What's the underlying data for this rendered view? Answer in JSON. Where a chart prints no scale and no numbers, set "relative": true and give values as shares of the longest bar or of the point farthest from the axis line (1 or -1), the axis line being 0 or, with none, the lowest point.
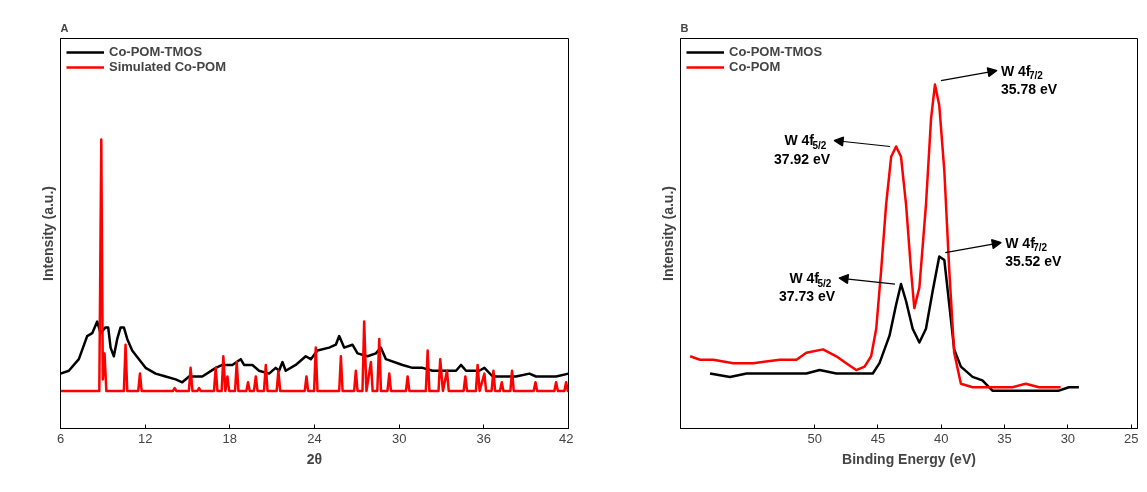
{
  "chart_data": [
    {
      "type": "line",
      "title": "A",
      "xlabel": "2θ",
      "ylabel": "Intensity (a.u.)",
      "xlim": [
        6,
        42
      ],
      "xticks": [
        6,
        12,
        18,
        24,
        30,
        36,
        42
      ],
      "relative": true,
      "legend": "top left",
      "series": [
        {
          "name": "Co-POM-TMOS",
          "color": "#000000",
          "x": [
            6.0,
            6.59,
            7.3,
            7.89,
            8.25,
            8.6,
            8.84,
            9.19,
            9.38,
            9.55,
            9.78,
            10.02,
            10.26,
            10.49,
            10.73,
            11.08,
            11.56,
            12.03,
            12.74,
            13.45,
            14.16,
            14.63,
            15.11,
            16.05,
            17.0,
            17.47,
            18.18,
            18.77,
            19.01,
            19.6,
            20.07,
            20.78,
            21.25,
            21.49,
            21.73,
            21.96,
            22.67,
            23.38,
            23.74,
            24.21,
            25.04,
            25.51,
            25.75,
            26.1,
            26.69,
            27.05,
            27.76,
            28.35,
            28.7,
            29.06,
            30.24,
            30.95,
            31.66,
            32.37,
            33.08,
            34.03,
            34.38,
            34.74,
            35.68,
            36.04,
            36.63,
            38.28,
            39.23,
            39.7,
            41.12,
            42.0
          ],
          "values": [
            0.19,
            0.2,
            0.24,
            0.32,
            0.33,
            0.37,
            0.33,
            0.35,
            0.35,
            0.28,
            0.25,
            0.31,
            0.35,
            0.35,
            0.31,
            0.27,
            0.24,
            0.21,
            0.19,
            0.18,
            0.17,
            0.16,
            0.18,
            0.18,
            0.21,
            0.22,
            0.22,
            0.24,
            0.22,
            0.22,
            0.2,
            0.19,
            0.21,
            0.2,
            0.23,
            0.2,
            0.22,
            0.25,
            0.24,
            0.27,
            0.28,
            0.29,
            0.32,
            0.28,
            0.29,
            0.26,
            0.25,
            0.26,
            0.28,
            0.24,
            0.22,
            0.21,
            0.21,
            0.2,
            0.2,
            0.2,
            0.22,
            0.2,
            0.2,
            0.21,
            0.18,
            0.18,
            0.19,
            0.18,
            0.18,
            0.19
          ]
        },
        {
          "name": "Simulated Co-POM",
          "color": "#ff0000",
          "x": [
            6.0,
            8.75,
            8.89,
            9.0,
            9.12,
            9.25,
            10.49,
            10.61,
            10.73,
            11.51,
            11.63,
            11.75,
            13.97,
            14.09,
            14.21,
            15.1,
            15.22,
            15.35,
            15.7,
            15.82,
            15.93,
            16.88,
            17.0,
            17.12,
            17.42,
            17.54,
            17.68,
            17.83,
            17.95,
            18.37,
            18.49,
            18.61,
            19.17,
            19.29,
            19.41,
            19.71,
            19.84,
            19.96,
            20.42,
            20.55,
            20.67,
            21.32,
            21.44,
            21.57,
            23.31,
            23.43,
            23.55,
            23.97,
            24.09,
            24.21,
            25.75,
            25.87,
            25.99,
            26.81,
            26.93,
            27.05,
            27.4,
            27.52,
            27.68,
            28.0,
            28.12,
            28.45,
            28.59,
            28.71,
            29.17,
            29.3,
            29.42,
            30.48,
            30.6,
            30.72,
            31.89,
            32.02,
            32.14,
            32.79,
            32.91,
            33.1,
            33.39,
            33.51,
            34.57,
            34.69,
            34.81,
            35.44,
            35.56,
            35.7,
            36.04,
            36.16,
            36.55,
            36.68,
            36.8,
            37.14,
            37.27,
            37.39,
            37.88,
            38.0,
            38.12,
            39.53,
            39.66,
            39.78,
            41.0,
            41.12,
            41.25,
            41.71,
            41.83,
            41.95,
            42.0
          ],
          "values": [
            0.13,
            0.13,
            1.0,
            0.17,
            0.26,
            0.13,
            0.13,
            0.29,
            0.13,
            0.13,
            0.19,
            0.13,
            0.13,
            0.14,
            0.13,
            0.13,
            0.21,
            0.13,
            0.13,
            0.14,
            0.13,
            0.13,
            0.21,
            0.13,
            0.13,
            0.25,
            0.13,
            0.18,
            0.13,
            0.13,
            0.23,
            0.13,
            0.13,
            0.16,
            0.13,
            0.13,
            0.18,
            0.13,
            0.13,
            0.22,
            0.13,
            0.13,
            0.2,
            0.13,
            0.13,
            0.18,
            0.13,
            0.13,
            0.28,
            0.13,
            0.13,
            0.25,
            0.13,
            0.13,
            0.2,
            0.13,
            0.13,
            0.37,
            0.13,
            0.23,
            0.13,
            0.13,
            0.31,
            0.13,
            0.13,
            0.19,
            0.13,
            0.13,
            0.18,
            0.13,
            0.13,
            0.27,
            0.13,
            0.13,
            0.24,
            0.13,
            0.2,
            0.13,
            0.13,
            0.18,
            0.13,
            0.13,
            0.22,
            0.13,
            0.19,
            0.13,
            0.13,
            0.2,
            0.13,
            0.13,
            0.16,
            0.13,
            0.13,
            0.2,
            0.13,
            0.13,
            0.16,
            0.13,
            0.13,
            0.16,
            0.13,
            0.13,
            0.16,
            0.13,
            0.13
          ]
        }
      ]
    },
    {
      "type": "line",
      "title": "B",
      "xlabel": "Binding Energy (eV)",
      "ylabel": "Intensity (a.u.)",
      "xlim": [
        60.6,
        24.5
      ],
      "xticks": [
        50,
        45,
        40,
        35,
        30,
        25
      ],
      "relative": true,
      "legend": "top left",
      "annotations": [
        {
          "text": "W 4f$_{7/2}$\n35.78 eV",
          "x": 40.5,
          "y": 1.0
        },
        {
          "text": "W 4f$_{5/2}$\n37.92 eV",
          "x": 43.57,
          "y": 0.82
        },
        {
          "text": "W 4f$_{7/2}$\n35.52 eV",
          "x": 40.16,
          "y": 0.5
        },
        {
          "text": "W 4f$_{5/2}$\n37.73 eV",
          "x": 43.18,
          "y": 0.42
        }
      ],
      "series": [
        {
          "name": "Co-POM-TMOS",
          "color": "#000000",
          "x": [
            58.27,
            56.69,
            55.38,
            53.81,
            52.23,
            50.66,
            49.61,
            48.29,
            46.98,
            45.93,
            45.41,
            44.88,
            44.09,
            43.57,
            43.18,
            42.78,
            42.26,
            41.73,
            41.21,
            40.68,
            40.16,
            39.76,
            39.37,
            38.98,
            38.45,
            37.53,
            36.75,
            35.96,
            34.38,
            32.28,
            30.71,
            29.92,
            29.13
          ],
          "values": [
            0.16,
            0.15,
            0.16,
            0.16,
            0.16,
            0.16,
            0.17,
            0.16,
            0.16,
            0.16,
            0.16,
            0.19,
            0.27,
            0.36,
            0.42,
            0.37,
            0.29,
            0.25,
            0.29,
            0.4,
            0.5,
            0.49,
            0.36,
            0.23,
            0.18,
            0.15,
            0.14,
            0.11,
            0.11,
            0.11,
            0.11,
            0.12,
            0.12
          ]
        },
        {
          "name": "Co-POM",
          "color": "#ff0000",
          "x": [
            59.84,
            59.06,
            58.01,
            56.43,
            54.86,
            52.76,
            51.44,
            50.66,
            49.34,
            48.29,
            47.51,
            46.72,
            46.06,
            45.54,
            45.14,
            44.75,
            44.36,
            43.96,
            43.57,
            43.18,
            42.78,
            42.39,
            42.13,
            41.73,
            41.21,
            40.81,
            40.5,
            40.16,
            39.76,
            39.37,
            38.98,
            38.45,
            37.53,
            35.7,
            34.38,
            33.33,
            32.28,
            30.58
          ],
          "values": [
            0.21,
            0.2,
            0.2,
            0.19,
            0.19,
            0.2,
            0.2,
            0.22,
            0.23,
            0.21,
            0.19,
            0.17,
            0.18,
            0.21,
            0.29,
            0.46,
            0.65,
            0.79,
            0.82,
            0.79,
            0.65,
            0.46,
            0.35,
            0.41,
            0.65,
            0.9,
            1.0,
            0.94,
            0.75,
            0.46,
            0.22,
            0.13,
            0.12,
            0.12,
            0.12,
            0.13,
            0.12,
            0.12
          ]
        }
      ]
    }
  ]
}
